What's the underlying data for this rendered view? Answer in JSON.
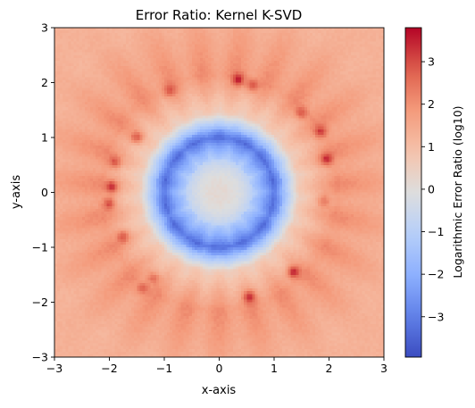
{
  "chart_data": {
    "type": "heatmap",
    "title": "Error Ratio: Kernel K-SVD",
    "xlabel": "x-axis",
    "ylabel": "y-axis",
    "xlim": [
      -3,
      3
    ],
    "ylim": [
      -3,
      3
    ],
    "x_ticks": [
      "−3",
      "−2",
      "−1",
      "0",
      "1",
      "2",
      "3"
    ],
    "y_ticks": [
      "−3",
      "−2",
      "−1",
      "0",
      "1",
      "2",
      "3"
    ],
    "colorbar": {
      "label": "Logarithmic Error Ratio (log10)",
      "range": [
        -3.95,
        3.8
      ],
      "ticks": [
        "−3",
        "−2",
        "−1",
        "0",
        "1",
        "2",
        "3"
      ],
      "colormap": "coolwarm"
    },
    "field": {
      "grid_cells": 120,
      "center_value": 0.15,
      "min_ring_radius": 1.0,
      "min_ring_value": -3.0,
      "outer_value": 1.3,
      "peak_radius": 2.15,
      "peak_value": 3.0,
      "peaks": [
        {
          "x": -1.95,
          "y": 0.1,
          "value": 3.6
        },
        {
          "x": -2.0,
          "y": -0.2,
          "value": 3.4
        },
        {
          "x": -1.9,
          "y": 0.55,
          "value": 3.2
        },
        {
          "x": -1.75,
          "y": -0.8,
          "value": 3.2
        },
        {
          "x": -1.5,
          "y": 1.0,
          "value": 3.3
        },
        {
          "x": -1.2,
          "y": -1.55,
          "value": 3.0
        },
        {
          "x": -0.9,
          "y": 1.85,
          "value": 3.0
        },
        {
          "x": 0.35,
          "y": 2.05,
          "value": 3.6
        },
        {
          "x": 0.6,
          "y": 1.95,
          "value": 3.3
        },
        {
          "x": 1.5,
          "y": 1.45,
          "value": 3.2
        },
        {
          "x": 1.85,
          "y": 1.1,
          "value": 3.3
        },
        {
          "x": 1.95,
          "y": 0.6,
          "value": 3.6
        },
        {
          "x": 1.9,
          "y": -0.15,
          "value": 3.0
        },
        {
          "x": 1.35,
          "y": -1.45,
          "value": 3.8
        },
        {
          "x": 0.55,
          "y": -1.9,
          "value": 3.6
        },
        {
          "x": -1.4,
          "y": -1.75,
          "value": 3.0
        }
      ]
    }
  },
  "colors": {
    "cold": "#3b4cc0",
    "neutral": "#dddddd",
    "hot": "#b40426"
  }
}
